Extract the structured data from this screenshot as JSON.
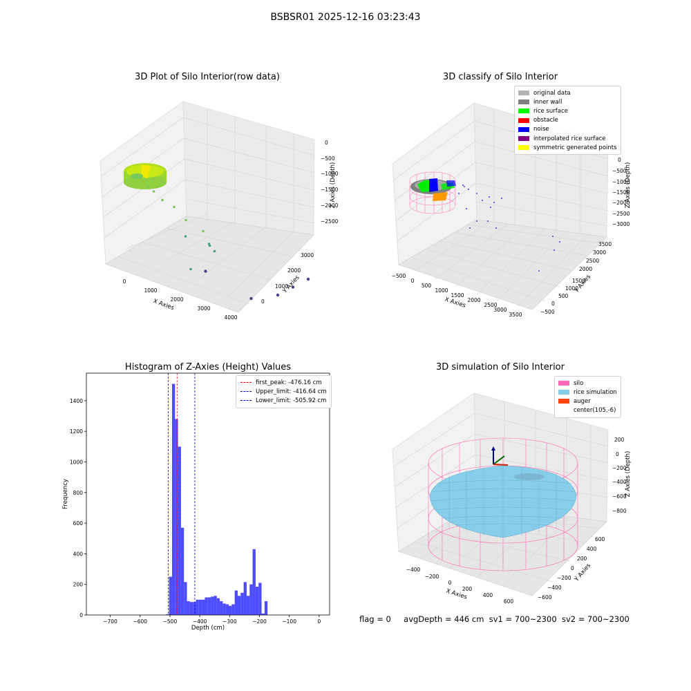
{
  "figure": {
    "suptitle": "BSBSR01 2025-12-16 03:23:43",
    "status_line": {
      "flag": "flag = 0",
      "avg_depth": "avgDepth = 446 cm",
      "sv1": "sv1 = 700~2300",
      "sv2": "sv2 = 700~2300"
    }
  },
  "colors": {
    "hist_bar": "#4d4dff",
    "first_peak": "#ff0000",
    "limit_line": "#0000cc",
    "pane": "#f2f2f2",
    "grid": "#d9d9d9",
    "silo": "#ff69b4",
    "rice": "#87ceeb"
  },
  "chart_data": [
    {
      "id": "raw",
      "type": "scatter3d",
      "title": "3D Plot of Silo Interior(row data)",
      "xlabel": "X Axies",
      "ylabel": "Y Axies",
      "zlabel": "Z Axies (Depth)",
      "xticks": [
        "0",
        "1000",
        "2000",
        "3000",
        "4000"
      ],
      "yticks": [
        "0",
        "1000",
        "2000",
        "3000"
      ],
      "zticks": [
        "0",
        "−500",
        "−1000",
        "−1500",
        "−2000",
        "−2500"
      ],
      "points": [
        {
          "x": 300,
          "y": 500,
          "z": -480
        },
        {
          "x": 500,
          "y": 500,
          "z": -500
        },
        {
          "x": 700,
          "y": 600,
          "z": -700
        },
        {
          "x": 900,
          "y": 800,
          "z": -900
        },
        {
          "x": 1100,
          "y": 1000,
          "z": -1300
        },
        {
          "x": 1200,
          "y": 900,
          "z": -1700
        },
        {
          "x": 1500,
          "y": 1200,
          "z": -1500
        },
        {
          "x": 1600,
          "y": 1300,
          "z": -1900
        },
        {
          "x": 1400,
          "y": 1500,
          "z": -2200
        },
        {
          "x": 1800,
          "y": 1300,
          "z": -2000
        },
        {
          "x": 1500,
          "y": 800,
          "z": -2500
        },
        {
          "x": 1700,
          "y": 1100,
          "z": -2600
        },
        {
          "x": 3500,
          "y": 2800,
          "z": -2600
        },
        {
          "x": 3400,
          "y": 2400,
          "z": -2700
        },
        {
          "x": 3300,
          "y": 2000,
          "z": -2800
        },
        {
          "x": 2900,
          "y": 1500,
          "z": -2900
        }
      ]
    },
    {
      "id": "classify",
      "type": "scatter3d",
      "title": "3D classify of Silo Interior",
      "xlabel": "X Axies",
      "ylabel": "Y Axies",
      "zlabel": "Z Axies (Depth)",
      "xticks": [
        "−500",
        "0",
        "500",
        "1000",
        "1500",
        "2000",
        "2500",
        "3000",
        "3500"
      ],
      "yticks": [
        "−500",
        "0",
        "500",
        "1000",
        "1500",
        "2000",
        "2500",
        "3000",
        "3500"
      ],
      "zticks": [
        "500",
        "0",
        "−500",
        "−1000",
        "−1500",
        "−2000",
        "−2500",
        "−3000"
      ],
      "legend": [
        {
          "label": "original data",
          "color": "#b3b3b3"
        },
        {
          "label": "inner wall",
          "color": "#808080"
        },
        {
          "label": "rice surface",
          "color": "#00ff00"
        },
        {
          "label": "obstacle",
          "color": "#ff0000"
        },
        {
          "label": "noise",
          "color": "#0000ff"
        },
        {
          "label": "interpolated rice surface",
          "color": "#800080"
        },
        {
          "label": "symmetric generated points",
          "color": "#ffff00"
        }
      ]
    },
    {
      "id": "hist",
      "type": "bar",
      "title": "Histogram of Z-Axies (Height) Values",
      "xlabel": "Depth (cm)",
      "ylabel": "Frequency",
      "xlim": [
        -780,
        35
      ],
      "ylim": [
        0,
        1580
      ],
      "xticks": [
        -700,
        -600,
        -500,
        -400,
        -300,
        -200,
        -100,
        0
      ],
      "yticks": [
        0,
        200,
        400,
        600,
        800,
        1000,
        1200,
        1400
      ],
      "bin_start": -513,
      "bin_width": 10,
      "values": [
        5,
        250,
        1510,
        1280,
        1100,
        570,
        215,
        90,
        85,
        85,
        100,
        100,
        100,
        115,
        115,
        120,
        125,
        110,
        90,
        75,
        70,
        60,
        70,
        160,
        125,
        145,
        215,
        125,
        200,
        430,
        185,
        210,
        10,
        90
      ],
      "lines": [
        {
          "label": "first_peak: -476.16 cm",
          "x": -476.16,
          "color": "#ff0000"
        },
        {
          "label": "Upper_limit: -416.64 cm",
          "x": -416.64,
          "color": "#0000cc"
        },
        {
          "label": "Lower_limit: -505.92 cm",
          "x": -505.92,
          "color": "#0000cc"
        }
      ]
    },
    {
      "id": "sim",
      "type": "surface3d",
      "title": "3D simulation of Silo Interior",
      "xlabel": "X Axies",
      "ylabel": "Y Axies",
      "zlabel": "Z Axies (Depth)",
      "xticks": [
        "−400",
        "−200",
        "0",
        "200",
        "400",
        "600"
      ],
      "yticks": [
        "−600",
        "−400",
        "−200",
        "0",
        "200",
        "400",
        "600"
      ],
      "zticks": [
        "200",
        "0",
        "−200",
        "−400",
        "−600",
        "−800"
      ],
      "legend": [
        {
          "label": "silo",
          "color": "#ff69b4"
        },
        {
          "label": "rice simulation",
          "color": "#87ceeb"
        },
        {
          "label": "auger",
          "color": "#ff4500"
        },
        {
          "label": "center(105,-6)",
          "color": ""
        }
      ]
    }
  ]
}
